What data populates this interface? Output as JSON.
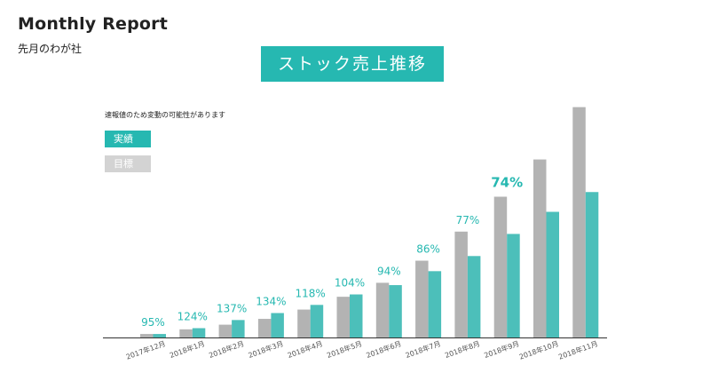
{
  "header": {
    "title": "Monthly Report",
    "subtitle": "先月のわが社"
  },
  "colors": {
    "accent": "#26b8b1",
    "actual_bar": "#4cbfba",
    "target_bar": "#b3b3b3",
    "legend_target": "#d3d3d3"
  },
  "chart_data": {
    "type": "bar",
    "title": "ストック売上推移",
    "note": "速報値のため変動の可能性があります",
    "categories": [
      "2017年12月",
      "2018年1月",
      "2018年2月",
      "2018年3月",
      "2018年4月",
      "2018年5月",
      "2018年6月",
      "2018年7月",
      "2018年8月",
      "2018年9月",
      "2018年10月",
      "2018年11月"
    ],
    "series": [
      {
        "name": "目標",
        "values": [
          3,
          7,
          11,
          16,
          24,
          35,
          47,
          66,
          91,
          121,
          153,
          198
        ]
      },
      {
        "name": "実績",
        "values": [
          3,
          8,
          15,
          21,
          28,
          37,
          45,
          57,
          70,
          89,
          108,
          125
        ]
      }
    ],
    "percent_labels": [
      "95%",
      "124%",
      "137%",
      "134%",
      "118%",
      "104%",
      "94%",
      "86%",
      "77%",
      "74%",
      "",
      ""
    ],
    "legend": [
      "実績",
      "目標"
    ],
    "legend_position": "top-left",
    "ylim": [
      0,
      200
    ],
    "grid": false
  }
}
